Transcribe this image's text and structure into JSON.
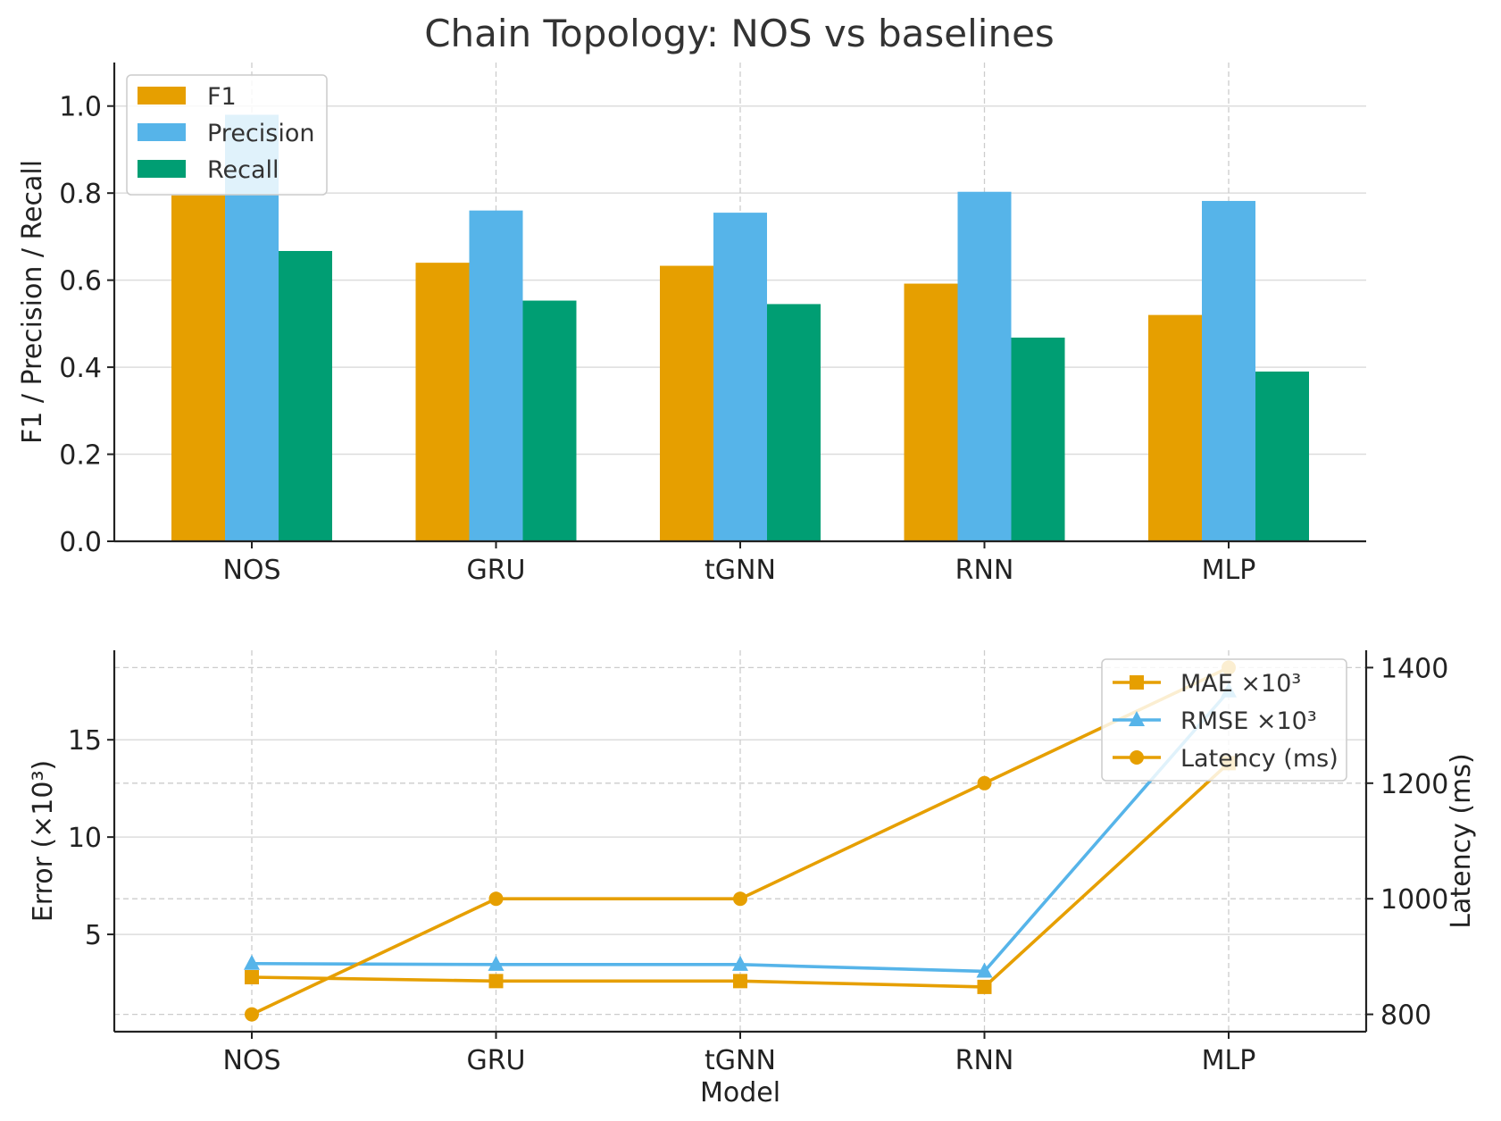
{
  "chart_data": [
    {
      "type": "bar",
      "title": "Chain Topology: NOS vs baselines",
      "xlabel": "",
      "ylabel": "F1 / Precision / Recall",
      "categories": [
        "NOS",
        "GRU",
        "tGNN",
        "RNN",
        "MLP"
      ],
      "ylim": [
        0,
        1.1
      ],
      "yticks": [
        "0.0",
        "0.2",
        "0.4",
        "0.6",
        "0.8",
        "1.0"
      ],
      "grid": true,
      "legend": "top-left",
      "series": [
        {
          "name": "F1",
          "color": "#E69F00",
          "values": [
            0.795,
            0.64,
            0.633,
            0.592,
            0.52
          ]
        },
        {
          "name": "Precision",
          "color": "#56B4E9",
          "values": [
            0.98,
            0.76,
            0.755,
            0.803,
            0.782
          ]
        },
        {
          "name": "Recall",
          "color": "#009E73",
          "values": [
            0.667,
            0.553,
            0.545,
            0.468,
            0.39
          ]
        }
      ]
    },
    {
      "type": "line",
      "xlabel": "Model",
      "ylabel": "Error (×10³)",
      "y2label": "Latency (ms)",
      "categories": [
        "NOS",
        "GRU",
        "tGNN",
        "RNN",
        "MLP"
      ],
      "ylim": [
        0,
        19.6
      ],
      "yticks": [
        "5",
        "10",
        "15"
      ],
      "y2lim": [
        770,
        1430
      ],
      "y2ticks": [
        "800",
        "1000",
        "1200",
        "1400"
      ],
      "grid": true,
      "legend": "top-right",
      "series": [
        {
          "name": "MAE ×10³",
          "axis": "left",
          "marker": "square",
          "color": "#E69F00",
          "values": [
            2.8,
            2.6,
            2.6,
            2.3,
            13.8
          ]
        },
        {
          "name": "RMSE ×10³",
          "axis": "left",
          "marker": "triangle",
          "color": "#56B4E9",
          "values": [
            3.5,
            3.45,
            3.45,
            3.1,
            17.5
          ]
        },
        {
          "name": "Latency (ms)",
          "axis": "right",
          "marker": "circle",
          "color": "#E69F00",
          "values": [
            800,
            1000,
            1000,
            1200,
            1400
          ]
        }
      ]
    }
  ]
}
